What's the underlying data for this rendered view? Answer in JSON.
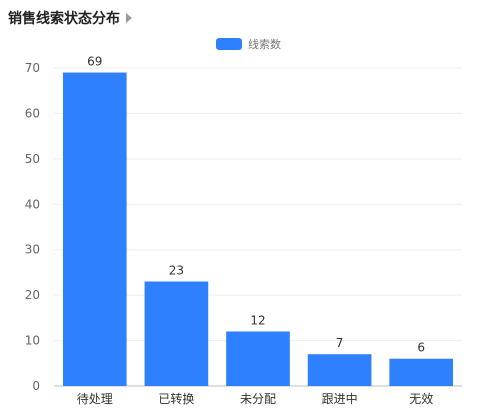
{
  "chart_data": {
    "type": "bar",
    "title": "销售线索状态分布",
    "legend": {
      "label": "线索数",
      "placement": "top-center"
    },
    "categories": [
      "待处理",
      "已转换",
      "未分配",
      "跟进中",
      "无效"
    ],
    "values": [
      69,
      23,
      12,
      7,
      6
    ],
    "data_labels": [
      "69",
      "23",
      "12",
      "7",
      "6"
    ],
    "y_ticks": [
      "0",
      "10",
      "20",
      "30",
      "40",
      "50",
      "60",
      "70"
    ],
    "ylim": [
      0,
      70
    ],
    "grid": true,
    "series_color": "#2F80FF"
  },
  "icons": {
    "title_arrow": "caret-right-icon"
  }
}
